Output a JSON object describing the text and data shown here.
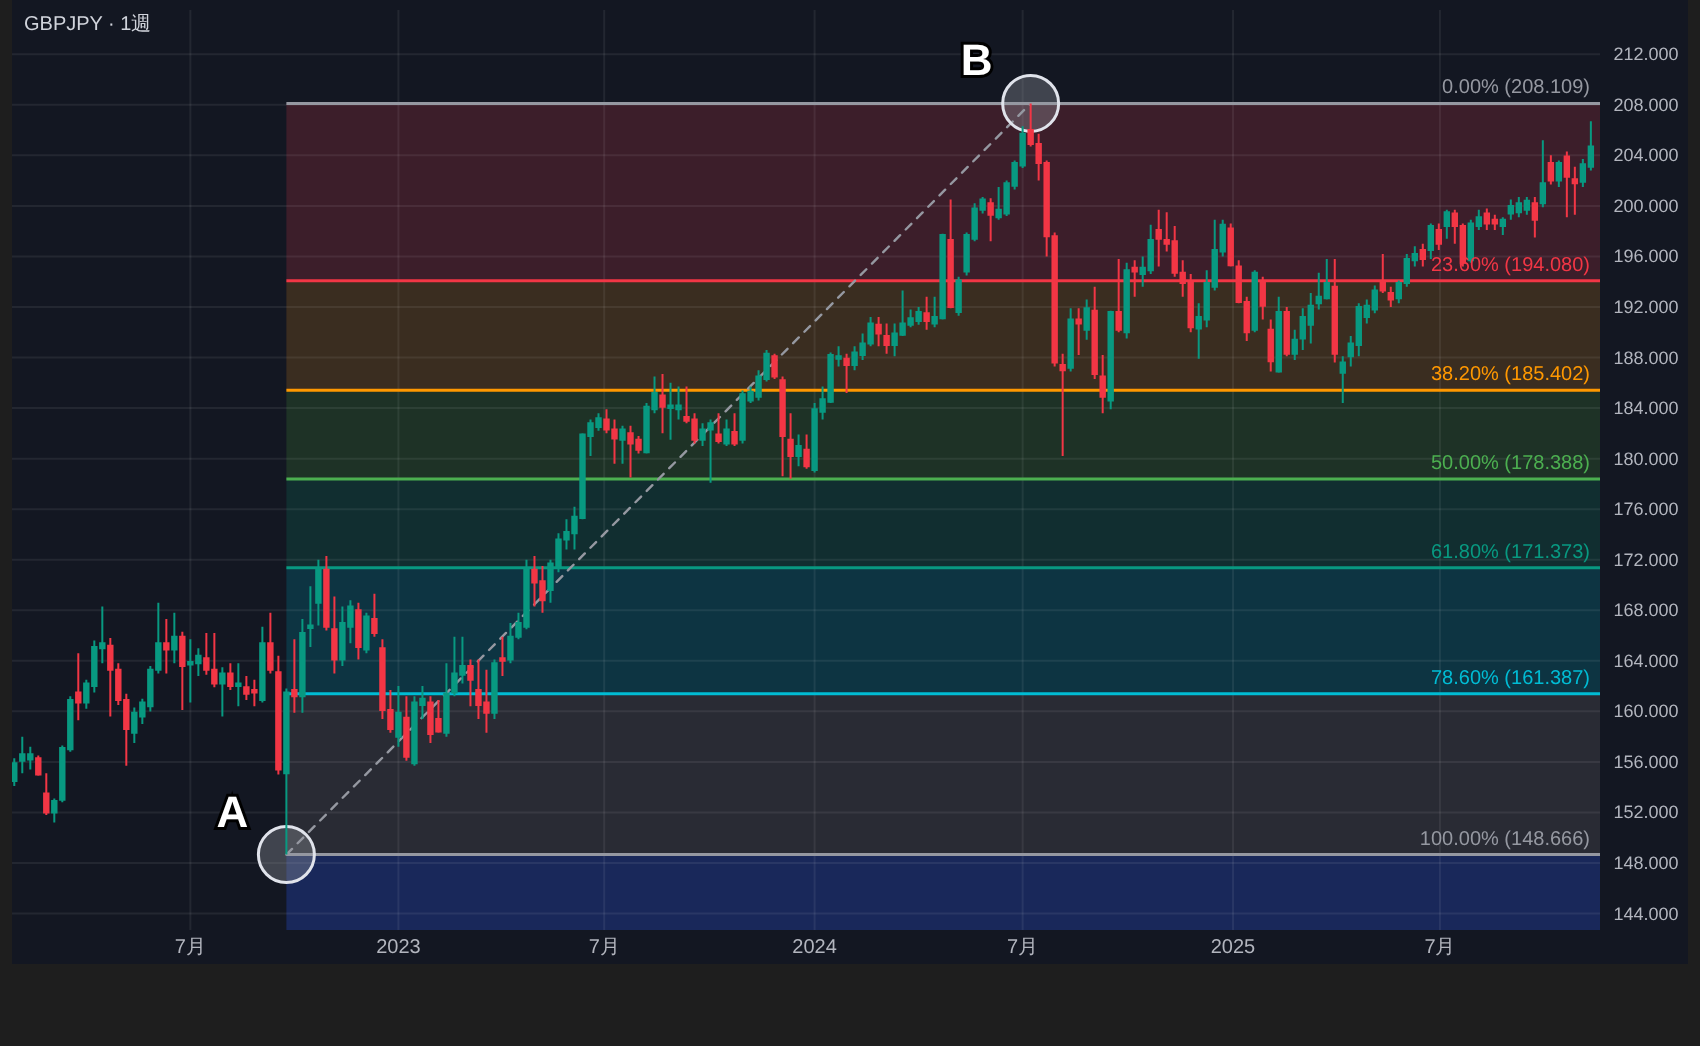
{
  "chart_data": {
    "type": "candlestick",
    "title": "GBPJPY · 1週",
    "x": [
      "2022-01-31",
      "2022-02-07",
      "2022-02-14",
      "2022-02-21",
      "2022-02-28",
      "2022-03-07",
      "2022-03-14",
      "2022-03-21",
      "2022-03-28",
      "2022-04-04",
      "2022-04-11",
      "2022-04-18",
      "2022-04-25",
      "2022-05-02",
      "2022-05-09",
      "2022-05-16",
      "2022-05-23",
      "2022-05-30",
      "2022-06-06",
      "2022-06-13",
      "2022-06-20",
      "2022-06-27",
      "2022-07-04",
      "2022-07-11",
      "2022-07-18",
      "2022-07-25",
      "2022-08-01",
      "2022-08-08",
      "2022-08-15",
      "2022-08-22",
      "2022-08-29",
      "2022-09-05",
      "2022-09-12",
      "2022-09-19",
      "2022-09-26",
      "2022-10-03",
      "2022-10-10",
      "2022-10-17",
      "2022-10-24",
      "2022-10-31",
      "2022-11-07",
      "2022-11-14",
      "2022-11-21",
      "2022-11-28",
      "2022-12-05",
      "2022-12-12",
      "2022-12-19",
      "2022-12-26",
      "2023-01-02",
      "2023-01-09",
      "2023-01-16",
      "2023-01-23",
      "2023-01-30",
      "2023-02-06",
      "2023-02-13",
      "2023-02-20",
      "2023-02-27",
      "2023-03-06",
      "2023-03-13",
      "2023-03-20",
      "2023-03-27",
      "2023-04-03",
      "2023-04-10",
      "2023-04-17",
      "2023-04-24",
      "2023-05-01",
      "2023-05-08",
      "2023-05-15",
      "2023-05-22",
      "2023-05-29",
      "2023-06-05",
      "2023-06-12",
      "2023-06-19",
      "2023-06-26",
      "2023-07-03",
      "2023-07-10",
      "2023-07-17",
      "2023-07-24",
      "2023-07-31",
      "2023-08-07",
      "2023-08-14",
      "2023-08-21",
      "2023-08-28",
      "2023-09-04",
      "2023-09-11",
      "2023-09-18",
      "2023-09-25",
      "2023-10-02",
      "2023-10-09",
      "2023-10-16",
      "2023-10-23",
      "2023-10-30",
      "2023-11-06",
      "2023-11-13",
      "2023-11-20",
      "2023-11-27",
      "2023-12-04",
      "2023-12-11",
      "2023-12-18",
      "2023-12-25",
      "2024-01-01",
      "2024-01-08",
      "2024-01-15",
      "2024-01-22",
      "2024-01-29",
      "2024-02-05",
      "2024-02-12",
      "2024-02-19",
      "2024-02-26",
      "2024-03-04",
      "2024-03-11",
      "2024-03-18",
      "2024-03-25",
      "2024-04-01",
      "2024-04-08",
      "2024-04-15",
      "2024-04-22",
      "2024-04-29",
      "2024-05-06",
      "2024-05-13",
      "2024-05-20",
      "2024-05-27",
      "2024-06-03",
      "2024-06-10",
      "2024-06-17",
      "2024-06-24",
      "2024-07-01",
      "2024-07-08",
      "2024-07-15",
      "2024-07-22",
      "2024-07-29",
      "2024-08-05",
      "2024-08-12",
      "2024-08-19",
      "2024-08-26",
      "2024-09-02",
      "2024-09-09",
      "2024-09-16",
      "2024-09-23",
      "2024-09-30",
      "2024-10-07",
      "2024-10-14",
      "2024-10-21",
      "2024-10-28",
      "2024-11-04",
      "2024-11-11",
      "2024-11-18",
      "2024-11-25",
      "2024-12-02",
      "2024-12-09",
      "2024-12-16",
      "2024-12-23",
      "2024-12-30",
      "2025-01-06",
      "2025-01-13",
      "2025-01-20",
      "2025-01-27",
      "2025-02-03",
      "2025-02-10",
      "2025-02-17",
      "2025-02-24",
      "2025-03-03",
      "2025-03-10",
      "2025-03-17",
      "2025-03-24",
      "2025-03-31",
      "2025-04-07",
      "2025-04-14",
      "2025-04-21",
      "2025-04-28",
      "2025-05-05",
      "2025-05-12",
      "2025-05-19",
      "2025-05-26",
      "2025-06-02",
      "2025-06-09",
      "2025-06-16",
      "2025-06-23",
      "2025-06-30",
      "2025-07-07",
      "2025-07-14",
      "2025-07-21",
      "2025-07-28",
      "2025-08-04",
      "2025-08-11",
      "2025-08-18",
      "2025-08-25",
      "2025-09-01",
      "2025-09-08",
      "2025-09-15",
      "2025-09-22",
      "2025-09-29",
      "2025-10-06",
      "2025-10-13",
      "2025-10-20",
      "2025-10-27",
      "2025-11-03",
      "2025-11-10"
    ],
    "ohlc": [
      [
        154.5,
        156.3,
        154.1,
        155.9
      ],
      [
        156.1,
        158.0,
        155.1,
        156.6
      ],
      [
        156.2,
        157.2,
        155.4,
        156.6
      ],
      [
        156.3,
        156.5,
        154.9,
        155.0
      ],
      [
        153.5,
        155.1,
        151.8,
        152.0
      ],
      [
        152.0,
        153.1,
        151.2,
        152.9
      ],
      [
        153.0,
        157.3,
        152.8,
        157.1
      ],
      [
        157.0,
        161.2,
        156.8,
        160.9
      ],
      [
        161.5,
        164.6,
        159.3,
        160.7
      ],
      [
        160.7,
        162.5,
        160.2,
        162.2
      ],
      [
        162.0,
        165.6,
        161.5,
        165.1
      ],
      [
        165.0,
        168.3,
        163.8,
        165.4
      ],
      [
        165.2,
        165.8,
        159.6,
        163.3
      ],
      [
        163.3,
        163.8,
        160.5,
        160.9
      ],
      [
        160.9,
        161.4,
        155.7,
        158.6
      ],
      [
        158.3,
        160.3,
        157.5,
        159.9
      ],
      [
        159.6,
        161.0,
        159.0,
        160.7
      ],
      [
        160.4,
        163.6,
        160.0,
        163.3
      ],
      [
        163.3,
        168.6,
        163.0,
        165.4
      ],
      [
        165.4,
        167.3,
        163.0,
        164.9
      ],
      [
        164.9,
        167.8,
        163.8,
        165.9
      ],
      [
        165.9,
        166.3,
        160.1,
        163.6
      ],
      [
        163.7,
        165.7,
        160.7,
        163.9
      ],
      [
        163.8,
        165.0,
        162.8,
        164.4
      ],
      [
        164.2,
        166.2,
        162.9,
        163.3
      ],
      [
        163.3,
        166.2,
        161.9,
        162.2
      ],
      [
        162.2,
        163.5,
        159.6,
        163.0
      ],
      [
        163.0,
        163.8,
        161.7,
        162.0
      ],
      [
        162.0,
        163.8,
        160.4,
        162.2
      ],
      [
        161.9,
        162.8,
        160.9,
        161.4
      ],
      [
        161.7,
        162.5,
        160.4,
        161.5
      ],
      [
        160.9,
        166.7,
        160.7,
        165.4
      ],
      [
        165.4,
        167.8,
        163.0,
        163.3
      ],
      [
        163.1,
        164.4,
        155.0,
        155.4
      ],
      [
        155.1,
        161.8,
        148.666,
        161.5
      ],
      [
        161.7,
        165.7,
        159.9,
        161.2
      ],
      [
        161.2,
        167.3,
        159.9,
        166.2
      ],
      [
        166.6,
        169.9,
        165.1,
        166.8
      ],
      [
        168.6,
        172.0,
        166.8,
        171.2
      ],
      [
        171.2,
        172.3,
        166.4,
        166.7
      ],
      [
        166.5,
        169.1,
        163.0,
        164.1
      ],
      [
        164.1,
        168.3,
        163.6,
        167.0
      ],
      [
        166.7,
        168.8,
        165.4,
        168.3
      ],
      [
        168.0,
        168.6,
        164.1,
        165.1
      ],
      [
        164.9,
        167.8,
        164.6,
        167.5
      ],
      [
        167.3,
        169.3,
        165.9,
        166.2
      ],
      [
        165.0,
        165.7,
        159.4,
        160.1
      ],
      [
        160.1,
        161.7,
        158.3,
        158.6
      ],
      [
        158.0,
        162.0,
        157.2,
        159.9
      ],
      [
        159.5,
        161.2,
        156.1,
        156.4
      ],
      [
        155.9,
        161.2,
        155.7,
        160.7
      ],
      [
        160.5,
        162.0,
        159.4,
        161.0
      ],
      [
        160.7,
        161.2,
        157.5,
        158.2
      ],
      [
        159.4,
        160.9,
        158.3,
        158.4
      ],
      [
        158.3,
        163.8,
        158.0,
        161.4
      ],
      [
        161.5,
        165.9,
        161.2,
        163.0
      ],
      [
        162.9,
        165.9,
        162.2,
        163.6
      ],
      [
        163.6,
        164.1,
        160.4,
        162.5
      ],
      [
        161.7,
        164.1,
        159.4,
        160.5
      ],
      [
        160.7,
        163.3,
        158.3,
        159.9
      ],
      [
        159.9,
        164.1,
        159.4,
        163.8
      ],
      [
        164.2,
        165.9,
        162.8,
        164.0
      ],
      [
        164.1,
        167.0,
        163.8,
        165.9
      ],
      [
        165.9,
        167.8,
        165.7,
        167.0
      ],
      [
        166.7,
        172.0,
        166.5,
        171.2
      ],
      [
        171.2,
        172.3,
        168.3,
        170.2
      ],
      [
        170.3,
        171.5,
        167.8,
        168.8
      ],
      [
        169.6,
        172.0,
        168.6,
        171.7
      ],
      [
        171.5,
        174.1,
        171.0,
        173.6
      ],
      [
        173.6,
        175.2,
        172.8,
        174.2
      ],
      [
        174.1,
        176.2,
        172.8,
        175.4
      ],
      [
        175.3,
        182.0,
        175.2,
        181.9
      ],
      [
        181.8,
        183.1,
        180.2,
        182.8
      ],
      [
        182.5,
        183.6,
        182.2,
        183.2
      ],
      [
        183.1,
        183.9,
        182.0,
        182.3
      ],
      [
        182.3,
        183.1,
        179.6,
        181.6
      ],
      [
        181.5,
        182.6,
        179.6,
        182.3
      ],
      [
        182.0,
        182.6,
        178.5,
        181.2
      ],
      [
        181.5,
        181.8,
        180.4,
        180.7
      ],
      [
        180.5,
        184.4,
        180.4,
        184.1
      ],
      [
        183.9,
        186.5,
        183.6,
        185.2
      ],
      [
        185.0,
        186.7,
        182.0,
        184.1
      ],
      [
        184.0,
        186.0,
        181.5,
        184.2
      ],
      [
        183.9,
        185.7,
        183.1,
        184.2
      ],
      [
        183.3,
        185.7,
        182.8,
        183.0
      ],
      [
        183.1,
        183.6,
        181.2,
        181.5
      ],
      [
        181.5,
        182.8,
        181.0,
        182.3
      ],
      [
        182.3,
        183.1,
        178.1,
        182.8
      ],
      [
        181.9,
        183.6,
        181.2,
        181.4
      ],
      [
        181.2,
        183.1,
        181.0,
        182.3
      ],
      [
        182.1,
        183.6,
        181.0,
        181.2
      ],
      [
        181.5,
        185.4,
        181.2,
        185.1
      ],
      [
        184.6,
        185.7,
        184.4,
        185.3
      ],
      [
        184.9,
        187.0,
        184.6,
        186.5
      ],
      [
        186.3,
        188.6,
        186.1,
        188.3
      ],
      [
        188.1,
        188.3,
        186.3,
        186.5
      ],
      [
        186.2,
        186.5,
        178.6,
        181.8
      ],
      [
        181.5,
        183.6,
        178.4,
        180.2
      ],
      [
        180.2,
        181.9,
        179.4,
        181.0
      ],
      [
        180.7,
        181.9,
        179.2,
        179.4
      ],
      [
        179.1,
        184.4,
        178.9,
        183.9
      ],
      [
        183.7,
        185.7,
        183.1,
        184.7
      ],
      [
        184.5,
        188.4,
        184.4,
        188.2
      ],
      [
        187.9,
        188.9,
        187.3,
        188.1
      ],
      [
        187.9,
        188.3,
        185.2,
        187.4
      ],
      [
        187.4,
        188.9,
        187.0,
        188.4
      ],
      [
        188.2,
        189.9,
        187.8,
        189.1
      ],
      [
        189.1,
        191.2,
        188.9,
        190.7
      ],
      [
        190.6,
        191.2,
        188.9,
        189.9
      ],
      [
        189.7,
        190.7,
        188.3,
        189.0
      ],
      [
        189.0,
        190.7,
        188.1,
        189.9
      ],
      [
        189.8,
        193.3,
        189.7,
        190.7
      ],
      [
        190.6,
        191.8,
        190.4,
        191.1
      ],
      [
        190.9,
        192.0,
        190.6,
        191.6
      ],
      [
        191.5,
        192.8,
        190.2,
        190.9
      ],
      [
        190.7,
        192.8,
        190.4,
        191.2
      ],
      [
        191.1,
        197.8,
        191.0,
        197.7
      ],
      [
        197.3,
        200.5,
        191.9,
        192.0
      ],
      [
        191.6,
        194.4,
        191.3,
        194.1
      ],
      [
        194.8,
        197.9,
        194.5,
        197.7
      ],
      [
        197.4,
        200.2,
        197.2,
        199.8
      ],
      [
        199.7,
        200.7,
        199.4,
        200.5
      ],
      [
        200.2,
        200.6,
        197.2,
        199.3
      ],
      [
        199.1,
        201.5,
        198.9,
        199.7
      ],
      [
        199.4,
        202.0,
        199.2,
        201.8
      ],
      [
        201.6,
        203.6,
        201.3,
        203.4
      ],
      [
        203.2,
        206.3,
        203.0,
        205.7
      ],
      [
        206.0,
        208.109,
        204.7,
        204.9
      ],
      [
        204.9,
        205.7,
        202.0,
        203.4
      ],
      [
        203.4,
        203.6,
        196.0,
        197.6
      ],
      [
        197.6,
        197.9,
        187.3,
        187.6
      ],
      [
        187.4,
        188.3,
        180.2,
        187.0
      ],
      [
        187.2,
        191.9,
        186.9,
        191.0
      ],
      [
        191.0,
        191.9,
        188.2,
        190.7
      ],
      [
        190.2,
        192.6,
        189.4,
        191.9
      ],
      [
        191.7,
        193.6,
        186.3,
        186.7
      ],
      [
        186.5,
        188.2,
        183.6,
        184.9
      ],
      [
        184.6,
        191.7,
        183.9,
        191.6
      ],
      [
        191.6,
        195.8,
        190.0,
        190.2
      ],
      [
        190.0,
        195.5,
        189.5,
        194.9
      ],
      [
        195.1,
        195.7,
        192.8,
        194.8
      ],
      [
        194.6,
        196.0,
        193.6,
        195.1
      ],
      [
        194.9,
        198.5,
        194.6,
        197.3
      ],
      [
        198.1,
        199.7,
        195.2,
        197.4
      ],
      [
        197.3,
        199.5,
        196.4,
        197.0
      ],
      [
        197.2,
        198.4,
        194.4,
        194.7
      ],
      [
        194.7,
        195.7,
        192.8,
        193.9
      ],
      [
        194.0,
        194.6,
        190.0,
        190.4
      ],
      [
        190.3,
        192.3,
        187.9,
        191.2
      ],
      [
        191.0,
        194.9,
        190.4,
        193.9
      ],
      [
        193.6,
        198.9,
        193.3,
        196.5
      ],
      [
        196.4,
        198.9,
        196.0,
        198.5
      ],
      [
        198.2,
        198.6,
        195.2,
        195.3
      ],
      [
        195.2,
        195.7,
        192.3,
        192.4
      ],
      [
        192.4,
        192.8,
        189.3,
        190.0
      ],
      [
        190.2,
        194.9,
        190.0,
        194.7
      ],
      [
        194.0,
        194.4,
        191.0,
        192.1
      ],
      [
        190.2,
        191.0,
        186.9,
        187.7
      ],
      [
        186.9,
        192.8,
        186.8,
        191.6
      ],
      [
        191.6,
        192.0,
        188.1,
        188.3
      ],
      [
        188.3,
        190.2,
        187.8,
        189.4
      ],
      [
        189.5,
        191.9,
        188.6,
        191.2
      ],
      [
        190.6,
        193.1,
        189.1,
        192.1
      ],
      [
        192.3,
        194.7,
        191.8,
        192.8
      ],
      [
        192.7,
        195.8,
        192.6,
        193.9
      ],
      [
        193.6,
        195.8,
        187.6,
        188.3
      ],
      [
        186.8,
        188.1,
        184.4,
        187.6
      ],
      [
        188.1,
        189.7,
        187.3,
        189.1
      ],
      [
        189.0,
        192.3,
        188.1,
        192.0
      ],
      [
        191.2,
        192.6,
        190.7,
        192.1
      ],
      [
        191.8,
        193.7,
        191.5,
        193.3
      ],
      [
        193.9,
        196.2,
        193.1,
        193.3
      ],
      [
        193.1,
        193.6,
        192.0,
        192.6
      ],
      [
        192.7,
        194.1,
        192.3,
        193.9
      ],
      [
        193.9,
        196.2,
        193.6,
        195.8
      ],
      [
        195.7,
        196.8,
        195.2,
        196.2
      ],
      [
        196.5,
        197.0,
        195.2,
        195.8
      ],
      [
        196.5,
        198.6,
        195.8,
        198.4
      ],
      [
        198.1,
        198.6,
        196.5,
        197.0
      ],
      [
        198.4,
        199.7,
        197.4,
        199.5
      ],
      [
        199.4,
        199.7,
        197.0,
        198.4
      ],
      [
        198.4,
        198.6,
        195.2,
        195.5
      ],
      [
        195.7,
        198.9,
        195.5,
        198.6
      ],
      [
        198.4,
        199.7,
        198.1,
        199.1
      ],
      [
        199.4,
        199.8,
        198.1,
        198.6
      ],
      [
        198.9,
        199.3,
        198.1,
        198.6
      ],
      [
        198.4,
        199.1,
        197.7,
        198.9
      ],
      [
        199.4,
        200.5,
        198.9,
        200.0
      ],
      [
        199.5,
        200.7,
        199.1,
        200.2
      ],
      [
        199.7,
        200.7,
        199.3,
        200.4
      ],
      [
        200.2,
        200.7,
        197.5,
        198.9
      ],
      [
        200.2,
        205.2,
        199.9,
        201.8
      ],
      [
        203.4,
        204.0,
        201.7,
        202.0
      ],
      [
        202.0,
        203.6,
        201.5,
        203.4
      ],
      [
        203.9,
        204.3,
        199.1,
        202.3
      ],
      [
        202.1,
        203.1,
        199.3,
        201.8
      ],
      [
        201.9,
        203.7,
        201.5,
        203.3
      ],
      [
        203.1,
        206.7,
        202.8,
        204.7
      ]
    ],
    "colors": [
      "#089981",
      "#089981",
      "#089981",
      "#f23645",
      "#f23645",
      "#089981",
      "#089981",
      "#089981",
      "#f23645",
      "#089981",
      "#089981",
      "#089981",
      "#f23645",
      "#f23645",
      "#f23645",
      "#089981",
      "#089981",
      "#089981",
      "#089981",
      "#f23645",
      "#089981",
      "#f23645",
      "#089981",
      "#089981",
      "#f23645",
      "#f23645",
      "#089981",
      "#f23645",
      "#089981",
      "#f23645",
      "#f23645",
      "#089981",
      "#f23645",
      "#f23645",
      "#089981",
      "#f23645",
      "#089981",
      "#089981",
      "#089981",
      "#f23645",
      "#f23645",
      "#089981",
      "#089981",
      "#f23645",
      "#089981",
      "#f23645",
      "#f23645",
      "#f23645",
      "#089981",
      "#f23645",
      "#089981",
      "#089981",
      "#f23645",
      "#f23645",
      "#089981",
      "#089981",
      "#089981",
      "#f23645",
      "#f23645",
      "#f23645",
      "#089981",
      "#f23645",
      "#089981",
      "#089981",
      "#089981",
      "#f23645",
      "#f23645",
      "#089981",
      "#089981",
      "#089981",
      "#089981",
      "#089981",
      "#089981",
      "#089981",
      "#f23645",
      "#f23645",
      "#089981",
      "#f23645",
      "#f23645",
      "#089981",
      "#089981",
      "#f23645",
      "#089981",
      "#089981",
      "#f23645",
      "#f23645",
      "#089981",
      "#089981",
      "#f23645",
      "#089981",
      "#f23645",
      "#089981",
      "#089981",
      "#089981",
      "#089981",
      "#f23645",
      "#f23645",
      "#f23645",
      "#089981",
      "#f23645",
      "#089981",
      "#089981",
      "#089981",
      "#089981",
      "#f23645",
      "#089981",
      "#089981",
      "#089981",
      "#f23645",
      "#f23645",
      "#089981",
      "#089981",
      "#089981",
      "#089981",
      "#f23645",
      "#089981",
      "#089981",
      "#f23645",
      "#089981",
      "#089981",
      "#089981",
      "#089981",
      "#f23645",
      "#089981",
      "#089981",
      "#089981",
      "#089981",
      "#f23645",
      "#f23645",
      "#f23645",
      "#f23645",
      "#f23645",
      "#089981",
      "#f23645",
      "#089981",
      "#f23645",
      "#f23645",
      "#089981",
      "#f23645",
      "#089981",
      "#f23645",
      "#089981",
      "#089981",
      "#f23645",
      "#f23645",
      "#f23645",
      "#f23645",
      "#f23645",
      "#089981",
      "#089981",
      "#089981",
      "#089981",
      "#f23645",
      "#f23645",
      "#f23645",
      "#089981",
      "#f23645",
      "#f23645",
      "#089981",
      "#f23645",
      "#089981",
      "#089981",
      "#089981",
      "#089981",
      "#089981",
      "#f23645",
      "#089981",
      "#089981",
      "#089981",
      "#089981",
      "#089981",
      "#f23645",
      "#f23645",
      "#089981",
      "#089981",
      "#089981",
      "#f23645",
      "#089981",
      "#f23645",
      "#089981",
      "#f23645",
      "#f23645",
      "#089981",
      "#089981",
      "#f23645",
      "#f23645",
      "#089981",
      "#089981",
      "#089981",
      "#089981",
      "#f23645",
      "#089981",
      "#f23645",
      "#089981",
      "#f23645",
      "#f23645",
      "#089981",
      "#089981"
    ],
    "series": [
      {
        "type": "line",
        "x": [
          "2022-09-26",
          "2024-07-08"
        ],
        "values": [
          148.666,
          208.109
        ],
        "color": "#9598a1",
        "line_style": "dashed",
        "marker": "circle"
      }
    ],
    "ref_lines": [
      {
        "axis": "y",
        "value": 208.109,
        "label": "0.00% (208.109)",
        "color": "#9598a1"
      },
      {
        "axis": "y",
        "value": 194.08,
        "label": "23.60% (194.080)",
        "color": "#f23645"
      },
      {
        "axis": "y",
        "value": 185.402,
        "label": "38.20% (185.402)",
        "color": "#ff9800"
      },
      {
        "axis": "y",
        "value": 178.388,
        "label": "50.00% (178.388)",
        "color": "#4caf50"
      },
      {
        "axis": "y",
        "value": 171.373,
        "label": "61.80% (171.373)",
        "color": "#089981"
      },
      {
        "axis": "y",
        "value": 161.387,
        "label": "78.60% (161.387)",
        "color": "#00bcd4"
      },
      {
        "axis": "y",
        "value": 148.666,
        "label": "100.00% (148.666)",
        "color": "#9598a1"
      }
    ],
    "bands": [
      {
        "axis": "y",
        "from": 194.08,
        "to": 208.109,
        "color": "#3c1e2a"
      },
      {
        "axis": "y",
        "from": 185.402,
        "to": 194.08,
        "color": "#3a2d20"
      },
      {
        "axis": "y",
        "from": 178.388,
        "to": 185.402,
        "color": "#1e3226"
      },
      {
        "axis": "y",
        "from": 171.373,
        "to": 178.388,
        "color": "#112e30"
      },
      {
        "axis": "y",
        "from": 161.387,
        "to": 171.373,
        "color": "#0d3442"
      },
      {
        "axis": "y",
        "from": 148.666,
        "to": 161.387,
        "color": "#292b34"
      },
      {
        "axis": "y",
        "from": 142.7,
        "to": 148.666,
        "color": "#19285a"
      }
    ],
    "annotations": [
      {
        "text": "A",
        "x": "2022-09-26",
        "y": 148.666
      },
      {
        "text": "B",
        "x": "2024-07-08",
        "y": 208.109
      }
    ],
    "xlim": [
      "2022-01-29",
      "2025-11-18"
    ],
    "xticks": [
      {
        "value": "2022-07-04",
        "label": "7月"
      },
      {
        "value": "2023-01-02",
        "label": "2023"
      },
      {
        "value": "2023-07-01",
        "label": "7月"
      },
      {
        "value": "2024-01-01",
        "label": "2024"
      },
      {
        "value": "2024-07-01",
        "label": "7月"
      },
      {
        "value": "2025-01-01",
        "label": "2025"
      },
      {
        "value": "2025-07-01",
        "label": "7月"
      }
    ],
    "ylim": [
      142.7,
      215.5
    ],
    "yticks": [
      {
        "value": 144,
        "label": "144.000"
      },
      {
        "value": 148,
        "label": "148.000"
      },
      {
        "value": 152,
        "label": "152.000"
      },
      {
        "value": 156,
        "label": "156.000"
      },
      {
        "value": 160,
        "label": "160.000"
      },
      {
        "value": 164,
        "label": "164.000"
      },
      {
        "value": 168,
        "label": "168.000"
      },
      {
        "value": 172,
        "label": "172.000"
      },
      {
        "value": 176,
        "label": "176.000"
      },
      {
        "value": 180,
        "label": "180.000"
      },
      {
        "value": 184,
        "label": "184.000"
      },
      {
        "value": 188,
        "label": "188.000"
      },
      {
        "value": 192,
        "label": "192.000"
      },
      {
        "value": 196,
        "label": "196.000"
      },
      {
        "value": 200,
        "label": "200.000"
      },
      {
        "value": 204,
        "label": "204.000"
      },
      {
        "value": 208,
        "label": "208.000"
      },
      {
        "value": 212,
        "label": "212.000"
      }
    ],
    "grid": true
  }
}
